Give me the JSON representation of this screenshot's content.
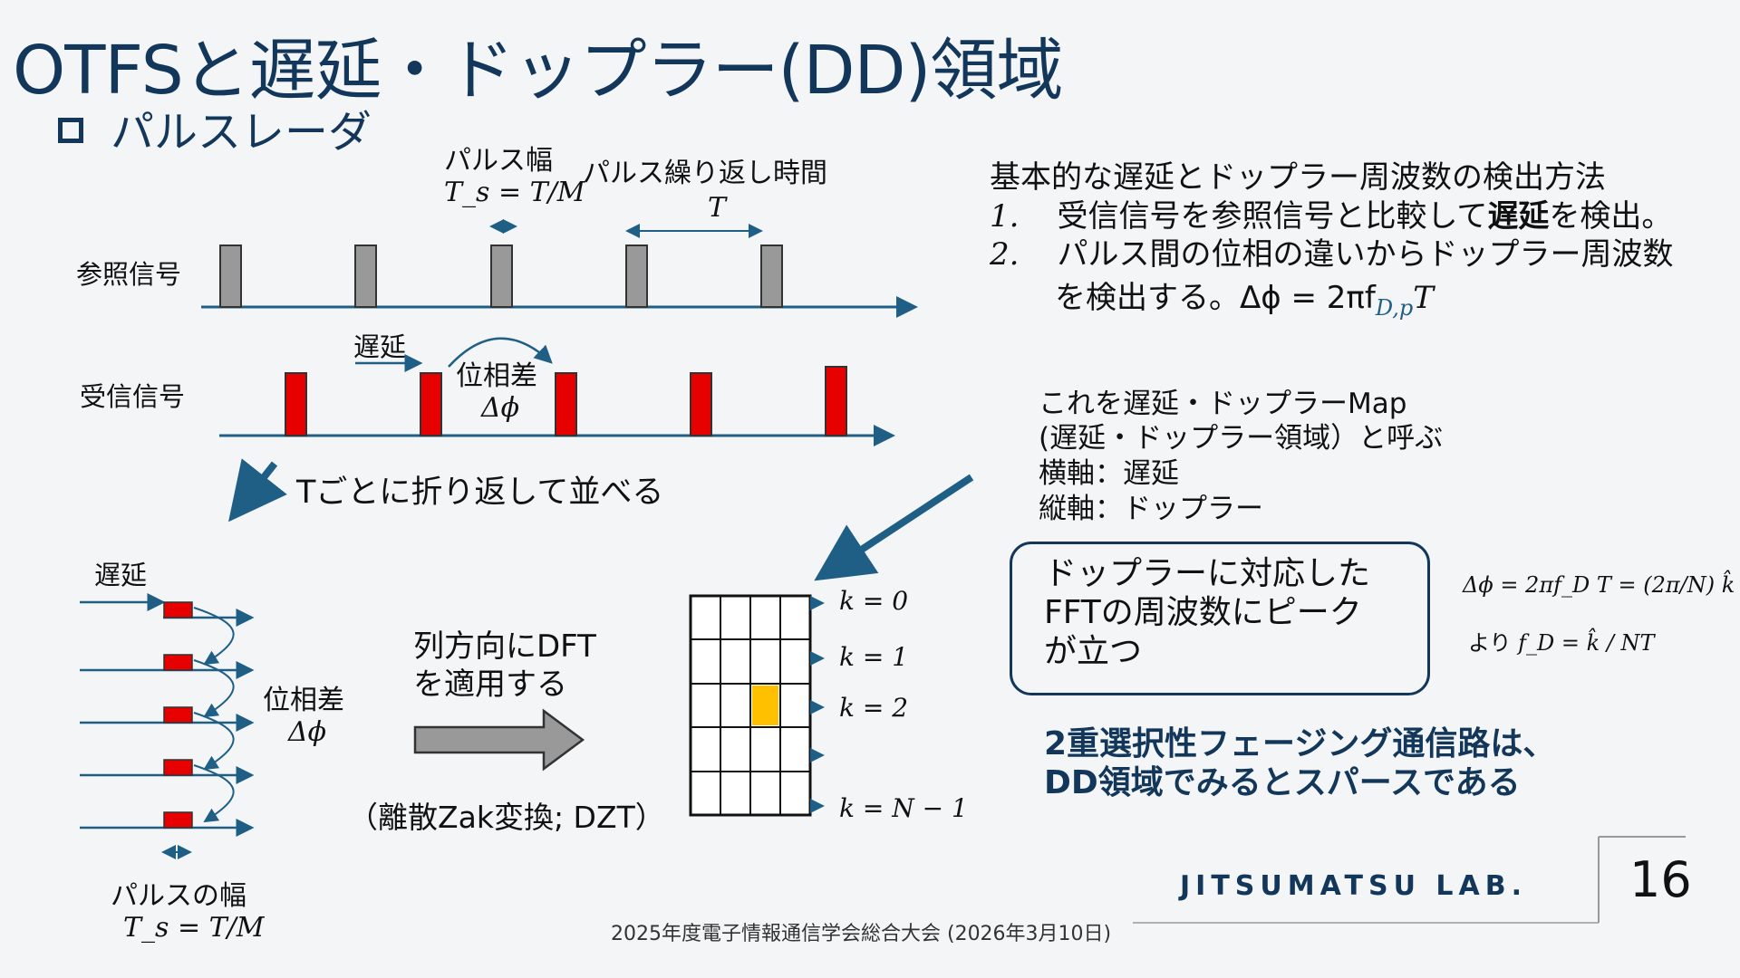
{
  "title": "OTFSと遅延・ドップラー(DD)領域",
  "subtitle": "パルスレーダ",
  "pulse_width_label": "パルス幅",
  "pulse_width_formula": "T_s = T/M",
  "repeat_label": "パルス繰り返し時間",
  "repeat_formula": "T",
  "ref_signal_label": "参照信号",
  "rx_signal_label": "受信信号",
  "delay_label": "遅延",
  "phase_diff_label": "位相差",
  "phase_diff_symbol": "Δϕ",
  "fold_label": "Tごとに折り返して並べる",
  "left_delay_label": "遅延",
  "left_phase_label": "位相差",
  "left_phase_symbol": "Δϕ",
  "left_pulse_width_label": "パルスの幅",
  "left_pulse_width_formula": "T_s = T/M",
  "dft_line1": "列方向にDFT",
  "dft_line2": "を適用する",
  "dzt_label": "（離散Zak変換; DZT）",
  "k_labels": [
    "k = 0",
    "k = 1",
    "k = 2",
    "k = N − 1"
  ],
  "method_title": "基本的な遅延とドップラー周波数の検出方法",
  "method_items": [
    {
      "num": "1.",
      "text_before": "受信信号を参照信号と比較して",
      "text_bold": "遅延",
      "text_after": "を検出。"
    },
    {
      "num": "2.",
      "text_line1": "パルス間の位相の違いからドップラー周波数",
      "text_line2": "を検出する。Δϕ = 2πf",
      "subscript": "D,p",
      "text_tail": "T"
    }
  ],
  "map_lines": [
    "これを遅延・ドップラーMap",
    "(遅延・ドップラー領域）と呼ぶ",
    "横軸：遅延",
    "縦軸：ドップラー"
  ],
  "dd_box_lines": [
    "ドップラーに対応した",
    "FFTの周波数にピーク",
    "が立つ"
  ],
  "formula_line1": "Δϕ = 2πf_D T = (2π/N) k̂",
  "formula_line2_prefix": "より",
  "formula_line2": "f_D = k̂ / NT",
  "conclusion_line1": "2重選択性フェージング通信路は、",
  "conclusion_line2": "DD領域でみるとスパースである",
  "lab_name": "JITSUMATSU LAB.",
  "page_number": "16",
  "footer": "2025年度電子情報通信学会総合大会 (2026年3月10日)",
  "colors": {
    "accent": "#13375a",
    "arrow": "#1f5f86",
    "ref_pulse": "#999999",
    "rx_pulse": "#e60000",
    "peak": "#ffc000"
  }
}
